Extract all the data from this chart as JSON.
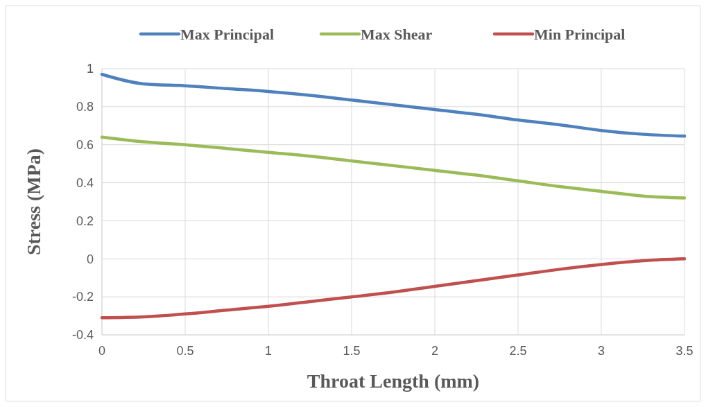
{
  "chart_data": {
    "type": "line",
    "xlabel": "Throat Length (mm)",
    "ylabel": "Stress (MPa)",
    "x": [
      0,
      0.25,
      0.5,
      0.75,
      1,
      1.25,
      1.5,
      1.75,
      2,
      2.25,
      2.5,
      2.75,
      3,
      3.25,
      3.5
    ],
    "series": [
      {
        "name": "Max Principal",
        "color": "#4f81bd",
        "values": [
          0.97,
          0.92,
          0.91,
          0.895,
          0.88,
          0.86,
          0.835,
          0.81,
          0.785,
          0.76,
          0.73,
          0.705,
          0.675,
          0.655,
          0.645
        ]
      },
      {
        "name": "Max Shear",
        "color": "#9bbb59",
        "values": [
          0.64,
          0.615,
          0.6,
          0.58,
          0.56,
          0.54,
          0.515,
          0.49,
          0.465,
          0.44,
          0.41,
          0.38,
          0.355,
          0.33,
          0.32
        ]
      },
      {
        "name": "Min Principal",
        "color": "#c0504d",
        "values": [
          -0.31,
          -0.305,
          -0.29,
          -0.27,
          -0.25,
          -0.225,
          -0.2,
          -0.175,
          -0.145,
          -0.115,
          -0.085,
          -0.055,
          -0.03,
          -0.01,
          0
        ]
      }
    ],
    "xlim": [
      0,
      3.5
    ],
    "xticks": [
      0,
      0.5,
      1,
      1.5,
      2,
      2.5,
      3,
      3.5
    ],
    "ylim": [
      -0.4,
      1
    ],
    "yticks": [
      -0.4,
      -0.2,
      0,
      0.2,
      0.4,
      0.6,
      0.8,
      1
    ],
    "grid": true,
    "legend": "top",
    "marker": "none",
    "line_style": "solid"
  }
}
